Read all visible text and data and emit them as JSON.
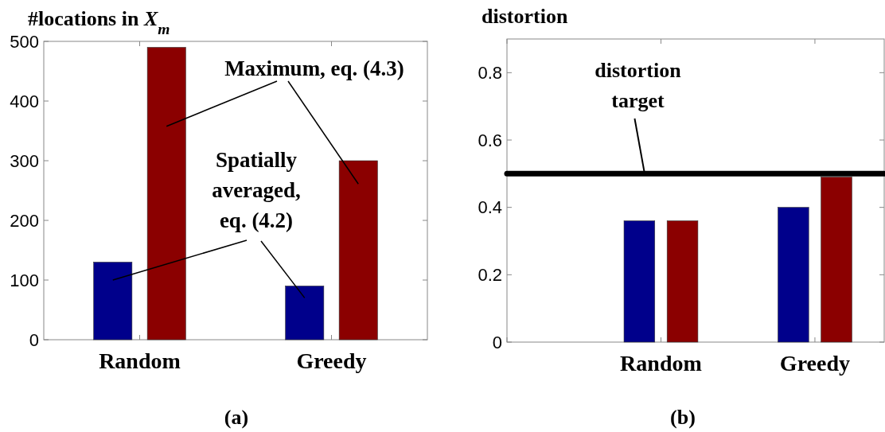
{
  "chart_data": [
    {
      "type": "bar",
      "title": "#locations in X$_{m}$",
      "categories": [
        "Random",
        "Greedy"
      ],
      "series": [
        {
          "color": "#00008b",
          "values": [
            130,
            90
          ]
        },
        {
          "color": "#8b0000",
          "values": [
            490,
            300
          ]
        }
      ],
      "ylim": [
        0,
        500
      ],
      "yticks": [
        0,
        100,
        200,
        300,
        400,
        500
      ],
      "annotations": [
        "Maximum, eq. (4.3)",
        "Spatially\naveraged,\neq. (4.2)",
        "(a)"
      ]
    },
    {
      "type": "bar",
      "title": "distortion",
      "categories": [
        null,
        "Random",
        "Greedy"
      ],
      "series": [
        {
          "color": "#00008b",
          "values": [
            null,
            0.36,
            0.4
          ]
        },
        {
          "color": "#8b0000",
          "values": [
            null,
            0.36,
            0.49
          ]
        }
      ],
      "ylim": [
        0,
        0.9
      ],
      "yticks": [
        0,
        0.2,
        0.4,
        0.6,
        0.8
      ],
      "ref_lines": [
        {
          "axis": "y",
          "value": 0.5,
          "label": "distortion\ntarget",
          "color": "#000000"
        }
      ],
      "annotations": [
        "(b)"
      ]
    }
  ]
}
